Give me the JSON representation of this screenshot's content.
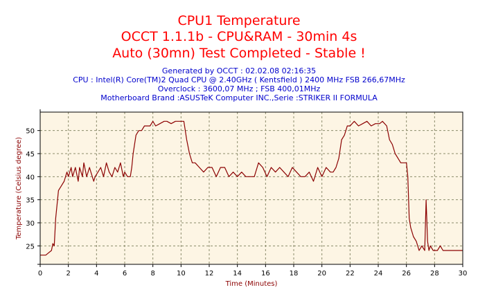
{
  "header": {
    "title_line1": "CPU1 Temperature",
    "title_line2": "OCCT 1.1.1b - CPU&RAM - 30min 4s",
    "title_line3": "Auto (30mn) Test Completed - Stable !"
  },
  "info": {
    "generated": "Generated by OCCT : 02.02.08 02:16:35",
    "cpu": "CPU : Intel(R) Core(TM)2 Quad CPU @ 2.40GHz ( Kentsfield ) 2400 MHz FSB 266,67MHz",
    "overclock": "Overclock : 3600,07 MHz ; FSB 400,01MHz",
    "motherboard": "Motherboard Brand :ASUSTeK Computer INC.,Serie :STRIKER II FORMULA"
  },
  "colors": {
    "plot_background": "#fdf5e4",
    "line": "#8b0000",
    "grid": "#8a8a6a",
    "title": "#ff0000",
    "info": "#0000cc"
  },
  "chart_data": {
    "type": "line",
    "xlabel": "Time (Minutes)",
    "ylabel": "Temperature (Celsius degree)",
    "xlim": [
      0,
      30
    ],
    "ylim": [
      21,
      54
    ],
    "x_ticks": [
      0,
      2,
      4,
      6,
      8,
      10,
      12,
      14,
      16,
      18,
      20,
      22,
      24,
      26,
      28,
      30
    ],
    "y_ticks": [
      25,
      30,
      35,
      40,
      45,
      50
    ],
    "grid": true,
    "series": [
      {
        "x": [
          0,
          0.4,
          0.6,
          0.8,
          0.9,
          1.0,
          1.1,
          1.3,
          1.5,
          1.7,
          1.9,
          2.0,
          2.2,
          2.3,
          2.5,
          2.7,
          2.8,
          3.0,
          3.1,
          3.3,
          3.5,
          3.6,
          3.8,
          3.9,
          4.1,
          4.3,
          4.5,
          4.7,
          4.9,
          5.1,
          5.3,
          5.5,
          5.7,
          5.9,
          6.0,
          6.2,
          6.4,
          6.5,
          6.6,
          6.8,
          7.0,
          7.2,
          7.4,
          7.6,
          7.8,
          8.0,
          8.2,
          8.5,
          8.8,
          9.0,
          9.3,
          9.6,
          9.9,
          10.2,
          10.4,
          10.6,
          10.8,
          11.0,
          11.3,
          11.6,
          11.9,
          12.2,
          12.5,
          12.8,
          13.1,
          13.4,
          13.7,
          14.0,
          14.3,
          14.6,
          14.9,
          15.2,
          15.5,
          15.8,
          16.1,
          16.4,
          16.7,
          17.0,
          17.3,
          17.6,
          17.9,
          18.2,
          18.5,
          18.8,
          19.1,
          19.4,
          19.7,
          20.0,
          20.3,
          20.6,
          20.8,
          21.0,
          21.2,
          21.4,
          21.6,
          21.8,
          22.0,
          22.3,
          22.6,
          22.9,
          23.2,
          23.5,
          23.8,
          24.1,
          24.3,
          24.6,
          24.8,
          25.0,
          25.2,
          25.4,
          25.6,
          25.8,
          26.0,
          26.1,
          26.2,
          26.3,
          26.5,
          26.7,
          26.9,
          27.1,
          27.3,
          27.4,
          27.5,
          27.6,
          27.7,
          27.9,
          28.0,
          28.2,
          28.4,
          28.6,
          29.0,
          30.0
        ],
        "y": [
          23,
          23,
          23.5,
          24,
          25.5,
          25,
          31,
          37,
          38,
          39,
          41,
          40,
          42,
          40,
          42,
          39,
          42,
          40,
          43,
          40,
          42,
          41,
          39,
          40,
          41,
          42,
          40,
          43,
          41,
          40,
          42,
          41,
          43,
          40,
          41,
          40,
          40,
          42,
          45,
          49,
          50,
          50,
          51,
          51,
          51,
          52,
          51,
          51.5,
          52,
          52,
          51.5,
          52,
          52,
          52,
          48,
          45,
          43,
          43,
          42,
          41,
          42,
          42,
          40,
          42,
          42,
          40,
          41,
          40,
          41,
          40,
          40,
          40,
          43,
          42,
          40,
          42,
          41,
          42,
          41,
          40,
          42,
          41,
          40,
          40,
          41,
          39,
          42,
          40,
          42,
          41,
          41,
          42,
          44,
          48,
          49,
          51,
          51,
          52,
          51,
          51.5,
          52,
          51,
          51.5,
          51.5,
          52,
          51,
          48,
          47,
          45,
          44,
          43,
          43,
          43,
          40,
          31,
          29,
          27,
          26,
          24,
          25,
          24,
          35,
          26,
          24,
          25,
          24,
          24,
          24,
          25,
          24,
          24,
          24
        ]
      }
    ]
  }
}
